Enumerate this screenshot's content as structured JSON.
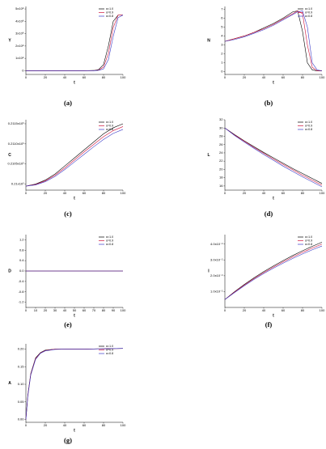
{
  "chart_data": [
    {
      "type": "line",
      "label": "(a)",
      "x_label": "t",
      "y_label": "Y",
      "legend": "upper right",
      "x": [
        0,
        10,
        20,
        30,
        40,
        50,
        60,
        70,
        75,
        80,
        85,
        90,
        95,
        100
      ],
      "series": [
        {
          "name": "α=1.0",
          "color": "#000000",
          "values": [
            0,
            0,
            0,
            0,
            0,
            0,
            0,
            2000000,
            10000000,
            50000000,
            200000000,
            400000000,
            450000000,
            450000000
          ]
        },
        {
          "name": "α=0.9",
          "color": "#d0103a",
          "values": [
            0,
            0,
            0,
            0,
            0,
            0,
            0,
            1000000,
            5000000,
            30000000,
            140000000,
            350000000,
            450000000,
            450000000
          ]
        },
        {
          "name": "α=0.8",
          "color": "#3b3bc8",
          "values": [
            0,
            0,
            0,
            0,
            0,
            0,
            0,
            0,
            3000000,
            15000000,
            90000000,
            280000000,
            430000000,
            450000000
          ]
        }
      ],
      "xlim": [
        0,
        100
      ],
      "xticks": [
        0,
        20,
        40,
        60,
        80,
        100
      ],
      "ylim": [
        -30000000,
        520000000
      ],
      "yticks": [
        0,
        {
          "value": 100000000,
          "label": "1x10⁸"
        },
        {
          "value": 200000000,
          "label": "2x10⁸"
        },
        {
          "value": 300000000,
          "label": "3x10⁸"
        },
        {
          "value": 400000000,
          "label": "4x10⁸"
        },
        {
          "value": 500000000,
          "label": "5x10⁸"
        }
      ]
    },
    {
      "type": "line",
      "label": "(b)",
      "x_label": "t",
      "y_label": "N",
      "legend": "upper right",
      "x": [
        0,
        10,
        20,
        30,
        40,
        50,
        60,
        70,
        75,
        80,
        85,
        90,
        95,
        100
      ],
      "series": [
        {
          "name": "α=1.0",
          "color": "#000000",
          "values": [
            3.4,
            3.7,
            4.0,
            4.4,
            4.9,
            5.4,
            6.0,
            6.7,
            6.8,
            4.5,
            1.0,
            0.2,
            0.1,
            0.1
          ]
        },
        {
          "name": "α=0.9",
          "color": "#d0103a",
          "values": [
            3.4,
            3.7,
            4.0,
            4.4,
            4.8,
            5.3,
            5.9,
            6.5,
            6.8,
            6.5,
            3.0,
            0.5,
            0.1,
            0.1
          ]
        },
        {
          "name": "α=0.8",
          "color": "#3b3bc8",
          "values": [
            3.4,
            3.6,
            3.9,
            4.3,
            4.7,
            5.2,
            5.8,
            6.4,
            6.7,
            6.8,
            5.0,
            1.0,
            0.2,
            0.1
          ]
        }
      ],
      "xlim": [
        0,
        100
      ],
      "xticks": [
        0,
        20,
        40,
        60,
        80,
        100
      ],
      "ylim": [
        -0.3,
        7.3
      ],
      "yticks": [
        0,
        1,
        2,
        3,
        4,
        5,
        6,
        7
      ]
    },
    {
      "type": "line",
      "label": "(c)",
      "x_label": "t",
      "y_label": "C",
      "legend": "upper right",
      "x": [
        0,
        10,
        20,
        30,
        40,
        50,
        60,
        70,
        80,
        90,
        100
      ],
      "series": [
        {
          "name": "α=1.0",
          "color": "#000000",
          "values": [
            209.95,
            210.0,
            210.1,
            210.25,
            210.45,
            210.65,
            210.85,
            211.05,
            211.25,
            211.4,
            211.5
          ]
        },
        {
          "name": "α=0.9",
          "color": "#d0103a",
          "values": [
            209.95,
            209.99,
            210.08,
            210.22,
            210.4,
            210.6,
            210.8,
            210.99,
            211.18,
            211.33,
            211.43
          ]
        },
        {
          "name": "α=0.8",
          "color": "#3b3bc8",
          "values": [
            209.95,
            209.98,
            210.06,
            210.19,
            210.36,
            210.55,
            210.74,
            210.93,
            211.11,
            211.26,
            211.36
          ]
        }
      ],
      "xlim": [
        0,
        100
      ],
      "xticks": [
        0,
        20,
        40,
        60,
        80,
        100
      ],
      "ylim": [
        209.85,
        211.6
      ],
      "yticks": [
        {
          "value": 210,
          "label": "0.21x10³"
        },
        {
          "value": 210.5,
          "label": "0.2105x10³"
        },
        {
          "value": 211,
          "label": "0.2110x10³"
        },
        {
          "value": 211.5,
          "label": "0.2115x10³"
        }
      ]
    },
    {
      "type": "line",
      "label": "(d)",
      "x_label": "t",
      "y_label": "L",
      "legend": "upper right",
      "x": [
        0,
        10,
        20,
        30,
        40,
        50,
        60,
        70,
        80,
        90,
        100
      ],
      "series": [
        {
          "name": "α=1.0",
          "color": "#000000",
          "values": [
            30,
            28.4,
            26.9,
            25.5,
            24.1,
            22.8,
            21.5,
            20.2,
            19,
            17.8,
            16.6
          ]
        },
        {
          "name": "α=0.9",
          "color": "#d0103a",
          "values": [
            30,
            28.3,
            26.8,
            25.3,
            23.9,
            22.5,
            21.2,
            19.9,
            18.6,
            17.4,
            16.2
          ]
        },
        {
          "name": "α=0.8",
          "color": "#3b3bc8",
          "values": [
            30,
            28.2,
            26.6,
            25.1,
            23.6,
            22.2,
            20.8,
            19.5,
            18.2,
            17.0,
            15.8
          ]
        }
      ],
      "xlim": [
        0,
        100
      ],
      "xticks": [
        0,
        20,
        40,
        60,
        80,
        100
      ],
      "ylim": [
        15,
        32
      ],
      "yticks": [
        16,
        18,
        20,
        22,
        24,
        26,
        28,
        30,
        32
      ]
    },
    {
      "type": "line",
      "label": "(e)",
      "x_label": "t",
      "y_label": "D",
      "legend": "upper right",
      "x": [
        0,
        50,
        100
      ],
      "series": [
        {
          "name": "α=1.0",
          "color": "#000000",
          "values": [
            0,
            0,
            0
          ]
        },
        {
          "name": "α=0.9",
          "color": "#d0103a",
          "values": [
            0,
            0,
            0
          ]
        },
        {
          "name": "α=0.8",
          "color": "#3b3bc8",
          "values": [
            0,
            0,
            0
          ]
        }
      ],
      "xlim": [
        0,
        100
      ],
      "xticks": [
        0,
        10,
        20,
        30,
        40,
        50,
        60,
        70,
        80,
        90,
        100
      ],
      "ylim": [
        -1.4,
        1.4
      ],
      "yticks": [
        -1.2,
        -0.8,
        -0.4,
        {
          "value": 0,
          "label": "0.0"
        },
        0.4,
        0.8,
        1.2
      ]
    },
    {
      "type": "line",
      "label": "(f)",
      "x_label": "t",
      "y_label": "I",
      "legend": "upper right",
      "x": [
        0,
        10,
        20,
        30,
        40,
        50,
        60,
        70,
        80,
        90,
        100
      ],
      "series": [
        {
          "name": "α=1.0",
          "color": "#000000",
          "values": [
            0.005,
            0.01,
            0.0145,
            0.0187,
            0.0226,
            0.0262,
            0.0296,
            0.0328,
            0.0358,
            0.0386,
            0.0412
          ]
        },
        {
          "name": "α=0.9",
          "color": "#d0103a",
          "values": [
            0.005,
            0.0097,
            0.0141,
            0.0182,
            0.022,
            0.0255,
            0.0288,
            0.0319,
            0.0348,
            0.0375,
            0.04
          ]
        },
        {
          "name": "α=0.8",
          "color": "#3b3bc8",
          "values": [
            0.005,
            0.0094,
            0.0137,
            0.0177,
            0.0214,
            0.0248,
            0.028,
            0.031,
            0.0338,
            0.0364,
            0.0388
          ]
        }
      ],
      "xlim": [
        0,
        100
      ],
      "xticks": [
        0,
        20,
        40,
        60,
        80,
        100
      ],
      "ylim": [
        0,
        0.046
      ],
      "yticks": [
        {
          "value": 0.01,
          "label": "1.0x10⁻²"
        },
        {
          "value": 0.02,
          "label": "2.0x10⁻²"
        },
        {
          "value": 0.03,
          "label": "3.0x10⁻²"
        },
        {
          "value": 0.04,
          "label": "4.0x10⁻²"
        }
      ]
    },
    {
      "type": "line",
      "label": "(g)",
      "x_label": "t",
      "y_label": "A",
      "legend": "upper right",
      "x": [
        0,
        2,
        5,
        10,
        15,
        20,
        30,
        40,
        60,
        80,
        100
      ],
      "series": [
        {
          "name": "α=1.0",
          "color": "#000000",
          "values": [
            0,
            0.07,
            0.13,
            0.175,
            0.19,
            0.197,
            0.2,
            0.2,
            0.2,
            0.201,
            0.202
          ]
        },
        {
          "name": "α=0.9",
          "color": "#d0103a",
          "values": [
            0,
            0.068,
            0.128,
            0.173,
            0.189,
            0.196,
            0.2,
            0.2,
            0.2,
            0.201,
            0.202
          ]
        },
        {
          "name": "α=0.8",
          "color": "#3b3bc8",
          "values": [
            0,
            0.066,
            0.126,
            0.171,
            0.188,
            0.195,
            0.199,
            0.2,
            0.2,
            0.201,
            0.202
          ]
        }
      ],
      "xlim": [
        0,
        100
      ],
      "xticks": [
        0,
        20,
        40,
        60,
        80,
        100
      ],
      "ylim": [
        -0.008,
        0.215
      ],
      "yticks": [
        {
          "value": 0,
          "label": "0.00"
        },
        {
          "value": 0.05,
          "label": "0.05"
        },
        {
          "value": 0.1,
          "label": "0.10"
        },
        {
          "value": 0.15,
          "label": "0.15"
        },
        {
          "value": 0.2,
          "label": "0.20"
        }
      ]
    }
  ]
}
